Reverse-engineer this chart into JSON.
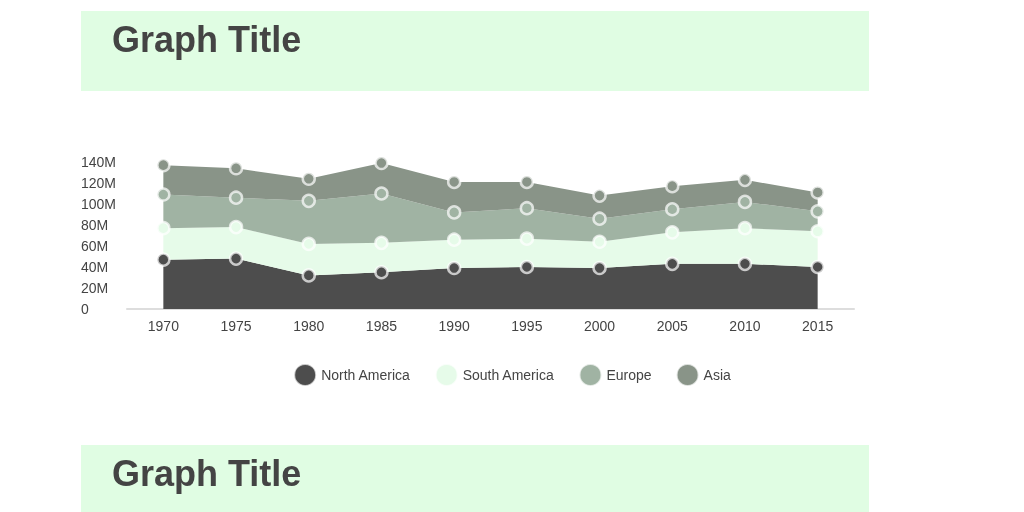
{
  "chart_data": {
    "type": "area",
    "title": "Graph Title",
    "stacked": true,
    "categories": [
      "1970",
      "1975",
      "1980",
      "1985",
      "1990",
      "1995",
      "2000",
      "2005",
      "2010",
      "2015"
    ],
    "series": [
      {
        "name": "North America",
        "color": "#4d4d4d",
        "values": [
          47,
          48,
          32,
          35,
          39,
          40,
          39,
          43,
          43,
          40
        ]
      },
      {
        "name": "South America",
        "color": "#e6fbe9",
        "values": [
          30,
          30,
          30,
          28,
          27,
          27,
          25,
          30,
          34,
          34
        ]
      },
      {
        "name": "Europe",
        "color": "#a0b3a3",
        "values": [
          32,
          28,
          41,
          47,
          26,
          29,
          22,
          22,
          25,
          19
        ]
      },
      {
        "name": "Asia",
        "color": "#899488",
        "values": [
          28,
          28,
          21,
          29,
          29,
          25,
          22,
          22,
          21,
          18
        ]
      }
    ],
    "ylim": [
      0,
      140
    ],
    "yticks": [
      {
        "value": 0,
        "label": "0"
      },
      {
        "value": 20,
        "label": "20M"
      },
      {
        "value": 40,
        "label": "40M"
      },
      {
        "value": 60,
        "label": "60M"
      },
      {
        "value": 80,
        "label": "80M"
      },
      {
        "value": 100,
        "label": "100M"
      },
      {
        "value": 120,
        "label": "120M"
      },
      {
        "value": 140,
        "label": "140M"
      }
    ],
    "grid": false,
    "legend": "bottom",
    "marker": "circle",
    "annotations": [
      "Graph Title"
    ]
  }
}
